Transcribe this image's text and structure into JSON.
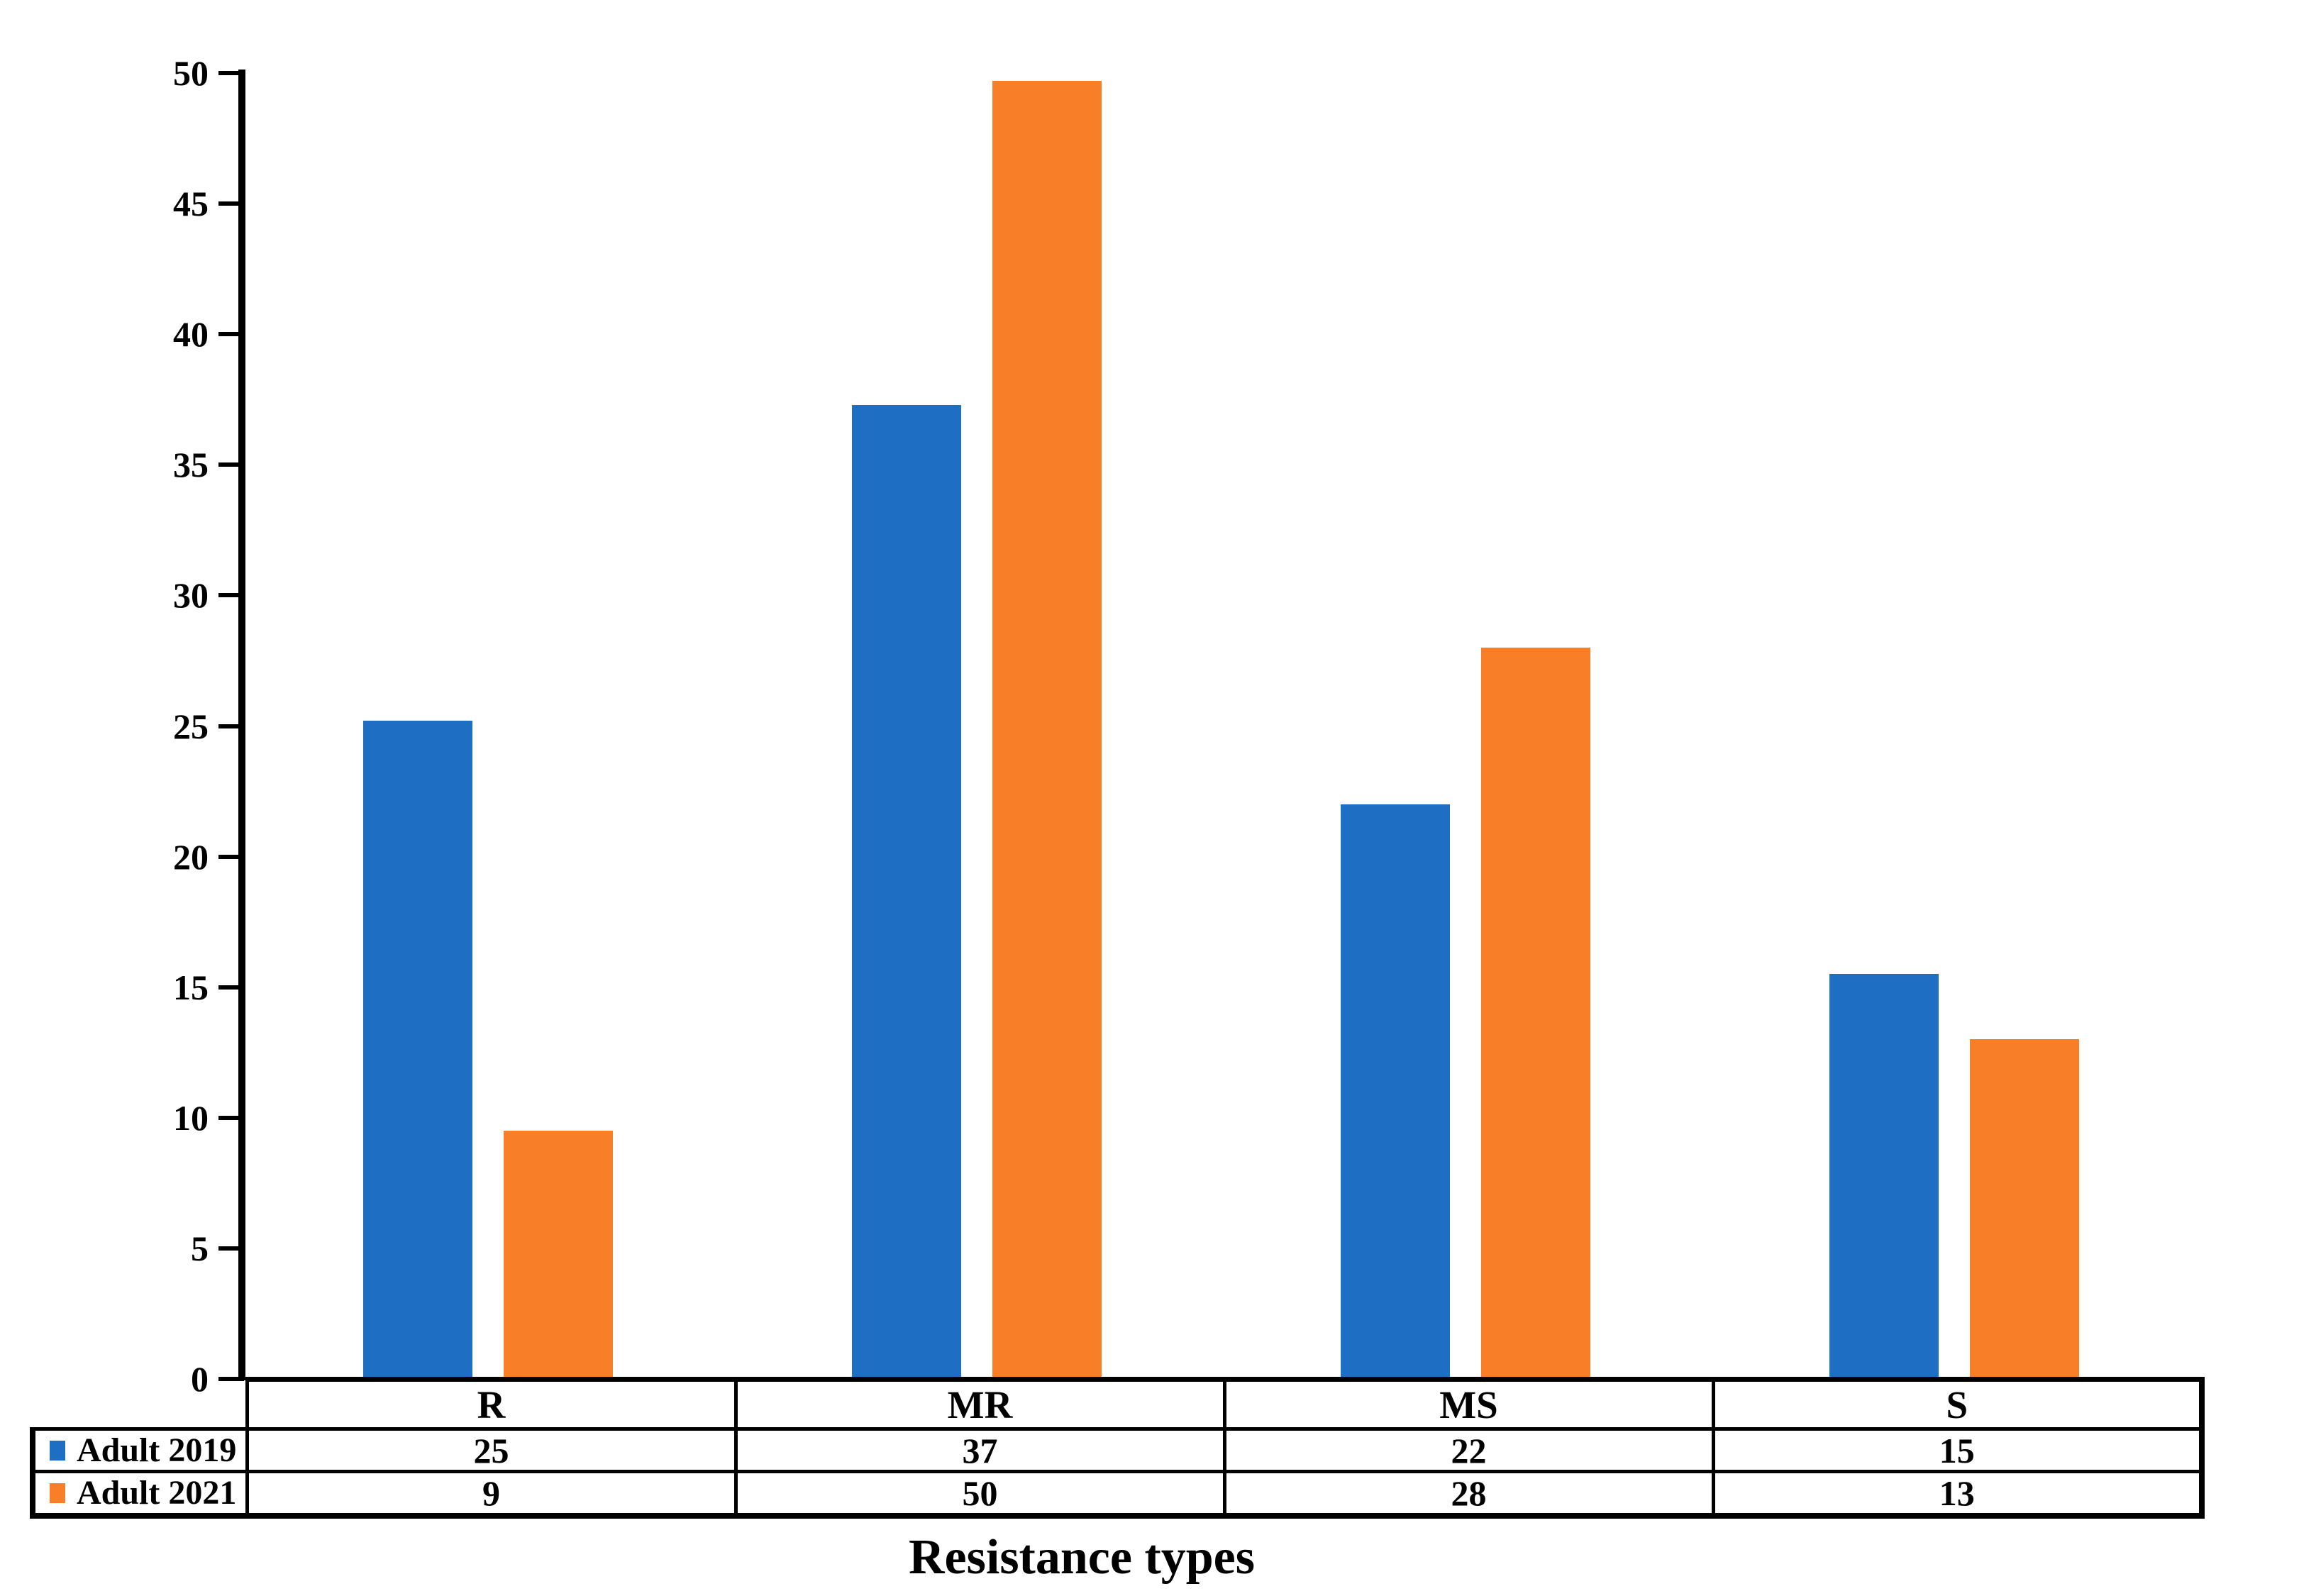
{
  "chart_data": {
    "type": "bar",
    "title": "",
    "xlabel": "Resistance types",
    "ylabel": "",
    "ylim": [
      0,
      50
    ],
    "ytick_interval": 5,
    "ytick_labels": [
      "0",
      "5",
      "10",
      "15",
      "20",
      "25",
      "30",
      "35",
      "40",
      "45",
      "50"
    ],
    "categories": [
      "R",
      "MR",
      "MS",
      "S"
    ],
    "series": [
      {
        "name": "Adult 2019",
        "color": "#1E6FC3",
        "values": [
          25,
          37,
          22,
          15
        ],
        "plotted_bar_values": [
          25.2,
          37.3,
          22.0,
          15.5
        ]
      },
      {
        "name": "Adult 2021",
        "color": "#F87E27",
        "values": [
          9,
          50,
          28,
          13
        ],
        "plotted_bar_values": [
          9.5,
          49.7,
          28.0,
          13.0
        ]
      }
    ],
    "grid": false,
    "legend_position": "data-table-left",
    "data_table_shown": true,
    "axis_color": "#000000",
    "text_color": "#000000",
    "background_color": "#ffffff"
  }
}
